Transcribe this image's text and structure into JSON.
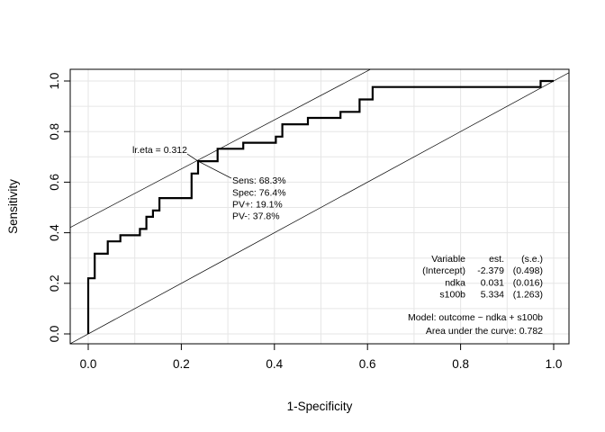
{
  "chart_data": {
    "type": "line",
    "xlabel": "1-Specificity",
    "ylabel": "Sensitivity",
    "xlim": [
      0,
      1
    ],
    "ylim": [
      0,
      1
    ],
    "x_ticks": [
      "0.0",
      "0.2",
      "0.4",
      "0.6",
      "0.8",
      "1.0"
    ],
    "y_ticks": [
      "0.0",
      "0.2",
      "0.4",
      "0.6",
      "0.8",
      "1.0"
    ],
    "grid": true,
    "series": [
      {
        "kind": "roc-step",
        "color": "#000000",
        "x": [
          0,
          0,
          0.014,
          0.014,
          0.042,
          0.042,
          0.069,
          0.069,
          0.111,
          0.111,
          0.125,
          0.125,
          0.139,
          0.139,
          0.153,
          0.153,
          0.222,
          0.222,
          0.236,
          0.236,
          0.278,
          0.278,
          0.333,
          0.333,
          0.347,
          0.347,
          0.403,
          0.403,
          0.417,
          0.417,
          0.472,
          0.472,
          0.542,
          0.542,
          0.583,
          0.583,
          0.611,
          0.611,
          0.972,
          0.972,
          1.0
        ],
        "y": [
          0,
          0.22,
          0.22,
          0.317,
          0.317,
          0.366,
          0.366,
          0.39,
          0.39,
          0.415,
          0.415,
          0.463,
          0.463,
          0.488,
          0.488,
          0.537,
          0.537,
          0.634,
          0.634,
          0.683,
          0.683,
          0.732,
          0.732,
          0.756,
          0.756,
          0.756,
          0.756,
          0.78,
          0.78,
          0.829,
          0.829,
          0.854,
          0.854,
          0.878,
          0.878,
          0.927,
          0.927,
          0.976,
          0.976,
          1.0,
          1.0
        ]
      }
    ],
    "reference_lines": [
      {
        "kind": "diagonal",
        "x": [
          0,
          1
        ],
        "y": [
          0,
          1
        ]
      },
      {
        "kind": "tangent",
        "x": [
          -0.05,
          0.6
        ],
        "y": [
          0.41,
          1.04
        ]
      }
    ],
    "optimal_point": {
      "x": 0.236,
      "y": 0.683,
      "label": "lr.eta = 0.312",
      "stats": [
        "Sens: 68.3%",
        "Spec: 76.4%",
        "PV+: 19.1%",
        "PV-: 37.8%"
      ]
    },
    "coef_table": {
      "header": [
        "Variable",
        "est.",
        "(s.e.)"
      ],
      "rows": [
        [
          "(Intercept)",
          "-2.379",
          "(0.498)"
        ],
        [
          "ndka",
          "0.031",
          "(0.016)"
        ],
        [
          "s100b",
          "5.334",
          "(1.263)"
        ]
      ]
    },
    "model_text": "Model:  outcome ~ ndka + s100b",
    "auc_text": "Area under the curve: 0.782"
  }
}
